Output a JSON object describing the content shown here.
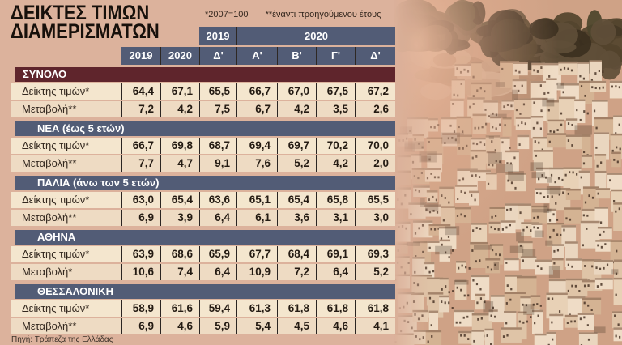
{
  "title": {
    "line1": "ΔΕΙΚΤΕΣ ΤΙΜΩΝ",
    "line2": "ΔΙΑΜΕΡΙΣΜΑΤΩΝ"
  },
  "footnotes": {
    "index_base": "*2007=100",
    "change_note": "**έναντι προηγούμενου έτους"
  },
  "source": "Πηγή: Τράπεζα της Ελλάδας",
  "colors": {
    "background": "#dcb29c",
    "group_header_total": "#5f252c",
    "group_header_other": "#525c76",
    "column_header_bg": "#525c76",
    "row_light": "#f4e6ce",
    "row_alt": "#eedbc3",
    "grid_line": "#2b2522",
    "header_text": "#ffffff",
    "value_text": "#241b13"
  },
  "chart_data": {
    "type": "table",
    "title": "ΔΕΙΚΤΕΣ ΤΙΜΩΝ ΔΙΑΜΕΡΙΣΜΑΤΩΝ",
    "year_spans": [
      {
        "label": "2019",
        "columns": 1
      },
      {
        "label": "2020",
        "columns": 4
      }
    ],
    "column_headers": [
      "2019",
      "2020",
      "Δ'",
      "Α'",
      "Β'",
      "Γ'",
      "Δ'"
    ],
    "groups": [
      {
        "name": "ΣΥΝΟΛΟ",
        "rows": [
          {
            "label": "Δείκτης τιμών*",
            "values": [
              "64,4",
              "67,1",
              "65,5",
              "66,7",
              "67,0",
              "67,5",
              "67,2"
            ]
          },
          {
            "label": "Μεταβολή**",
            "values": [
              "7,2",
              "4,2",
              "7,5",
              "6,7",
              "4,2",
              "3,5",
              "2,6"
            ]
          }
        ]
      },
      {
        "name": "ΝΕΑ (έως 5 ετών)",
        "rows": [
          {
            "label": "Δείκτης τιμών*",
            "values": [
              "66,7",
              "69,8",
              "68,7",
              "69,4",
              "69,7",
              "70,2",
              "70,0"
            ]
          },
          {
            "label": "Μεταβολή**",
            "values": [
              "7,7",
              "4,7",
              "9,1",
              "7,6",
              "5,2",
              "4,2",
              "2,0"
            ]
          }
        ]
      },
      {
        "name": "ΠΑΛΙΑ (άνω των 5 ετών)",
        "rows": [
          {
            "label": "Δείκτης τιμών*",
            "values": [
              "63,0",
              "65,4",
              "63,6",
              "65,1",
              "65,4",
              "65,8",
              "65,5"
            ]
          },
          {
            "label": "Μεταβολή**",
            "values": [
              "6,9",
              "3,9",
              "6,4",
              "6,1",
              "3,6",
              "3,1",
              "3,0"
            ]
          }
        ]
      },
      {
        "name": "ΑΘΗΝΑ",
        "rows": [
          {
            "label": "Δείκτης τιμών*",
            "values": [
              "63,9",
              "68,6",
              "65,9",
              "67,7",
              "68,4",
              "69,1",
              "69,3"
            ]
          },
          {
            "label": "Μεταβολή*",
            "values": [
              "10,6",
              "7,4",
              "6,4",
              "10,9",
              "7,2",
              "6,4",
              "5,2"
            ]
          }
        ]
      },
      {
        "name": "ΘΕΣΣΑΛΟΝΙΚΗ",
        "rows": [
          {
            "label": "Δείκτης τιμών*",
            "values": [
              "58,9",
              "61,6",
              "59,4",
              "61,3",
              "61,8",
              "61,8",
              "61,8"
            ]
          },
          {
            "label": "Μεταβολή**",
            "values": [
              "6,9",
              "4,6",
              "5,9",
              "5,4",
              "4,5",
              "4,6",
              "4,1"
            ]
          }
        ]
      }
    ]
  }
}
